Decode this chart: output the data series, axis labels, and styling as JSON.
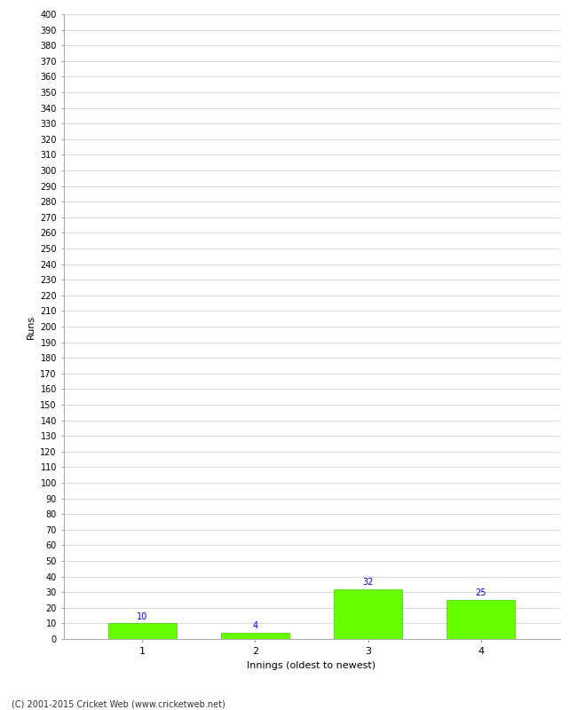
{
  "categories": [
    1,
    2,
    3,
    4
  ],
  "values": [
    10,
    4,
    32,
    25
  ],
  "bar_color": "#66ff00",
  "bar_edge_color": "#44cc00",
  "ylabel": "Runs",
  "xlabel": "Innings (oldest to newest)",
  "ylim": [
    0,
    400
  ],
  "yticks": [
    0,
    10,
    20,
    30,
    40,
    50,
    60,
    70,
    80,
    90,
    100,
    110,
    120,
    130,
    140,
    150,
    160,
    170,
    180,
    190,
    200,
    210,
    220,
    230,
    240,
    250,
    260,
    270,
    280,
    290,
    300,
    310,
    320,
    330,
    340,
    350,
    360,
    370,
    380,
    390,
    400
  ],
  "annotation_color": "#0000cc",
  "annotation_fontsize": 7,
  "footer": "(C) 2001-2015 Cricket Web (www.cricketweb.net)",
  "background_color": "#ffffff",
  "grid_color": "#cccccc",
  "ytick_fontsize": 7,
  "xtick_fontsize": 8,
  "ylabel_fontsize": 8,
  "xlabel_fontsize": 8,
  "footer_fontsize": 7
}
